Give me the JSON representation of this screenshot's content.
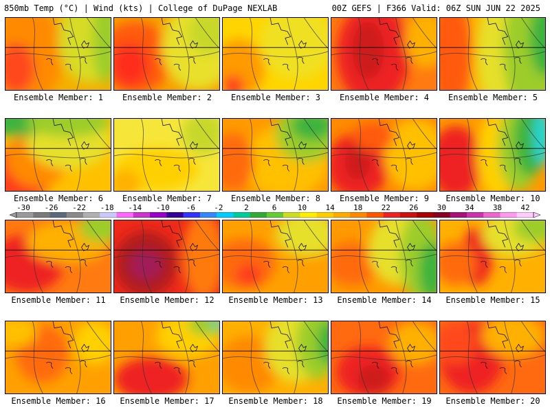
{
  "header": {
    "left": "850mb Temp (°C) | Wind (kts) | College of DuPage NEXLAB",
    "right": "00Z GEFS | F366 Valid: 06Z SUN JUN 22 2025"
  },
  "panel_caption_prefix": "Ensemble Member: ",
  "members": [
    {
      "id": "1",
      "bg": "#f4b000",
      "blobs": [
        [
          "#ff8a00",
          0.2,
          0.5,
          0.35,
          0.7
        ],
        [
          "#ff4a1a",
          0.1,
          0.7,
          0.18,
          0.35
        ],
        [
          "#d7dc25",
          0.8,
          0.3,
          0.3,
          0.6
        ],
        [
          "#9ccd2a",
          0.95,
          0.3,
          0.12,
          0.6
        ]
      ]
    },
    {
      "id": "2",
      "bg": "#f7a000",
      "blobs": [
        [
          "#ff5a10",
          0.2,
          0.55,
          0.35,
          0.5
        ],
        [
          "#ff2e1a",
          0.15,
          0.65,
          0.18,
          0.3
        ],
        [
          "#e8e02a",
          0.8,
          0.4,
          0.35,
          0.6
        ],
        [
          "#c8d82a",
          0.9,
          0.2,
          0.2,
          0.3
        ]
      ]
    },
    {
      "id": "3",
      "bg": "#ffd500",
      "blobs": [
        [
          "#ff9a00",
          0.15,
          0.7,
          0.25,
          0.4
        ],
        [
          "#f0e020",
          0.7,
          0.35,
          0.35,
          0.5
        ],
        [
          "#ff3a1a",
          0.1,
          0.95,
          0.1,
          0.15
        ]
      ]
    },
    {
      "id": "4",
      "bg": "#ff7a10",
      "blobs": [
        [
          "#ee2222",
          0.4,
          0.5,
          0.35,
          0.7
        ],
        [
          "#cc1a1a",
          0.35,
          0.45,
          0.15,
          0.4
        ],
        [
          "#ffb000",
          0.9,
          0.3,
          0.2,
          0.4
        ]
      ]
    },
    {
      "id": "5",
      "bg": "#ffb000",
      "blobs": [
        [
          "#ff5a10",
          0.1,
          0.5,
          0.2,
          0.8
        ],
        [
          "#e6e02a",
          0.55,
          0.5,
          0.2,
          0.8
        ],
        [
          "#9ccd2a",
          0.85,
          0.45,
          0.25,
          0.9
        ],
        [
          "#3cb43c",
          1.0,
          0.3,
          0.15,
          0.5
        ]
      ]
    },
    {
      "id": "6",
      "bg": "#ffc000",
      "blobs": [
        [
          "#ff3a1a",
          0.15,
          0.75,
          0.3,
          0.4
        ],
        [
          "#ff8a00",
          0.3,
          0.55,
          0.3,
          0.4
        ],
        [
          "#e6e02a",
          0.6,
          0.3,
          0.4,
          0.4
        ],
        [
          "#3cb43c",
          0.1,
          0.05,
          0.3,
          0.2
        ],
        [
          "#9ccd2a",
          0.6,
          0.05,
          0.4,
          0.2
        ]
      ]
    },
    {
      "id": "7",
      "bg": "#f7e63a",
      "blobs": [
        [
          "#ffd000",
          0.4,
          0.7,
          0.4,
          0.3
        ],
        [
          "#ffb000",
          0.1,
          0.9,
          0.15,
          0.2
        ],
        [
          "#c8d82a",
          0.85,
          0.2,
          0.2,
          0.3
        ]
      ]
    },
    {
      "id": "8",
      "bg": "#ff9a00",
      "blobs": [
        [
          "#ffc000",
          0.6,
          0.6,
          0.4,
          0.5
        ],
        [
          "#9ccd2a",
          0.8,
          0.2,
          0.3,
          0.4
        ],
        [
          "#3cb43c",
          0.85,
          0.1,
          0.2,
          0.2
        ],
        [
          "#ff6a10",
          0.1,
          0.6,
          0.2,
          0.4
        ]
      ]
    },
    {
      "id": "9",
      "bg": "#ff8a00",
      "blobs": [
        [
          "#ee2222",
          0.25,
          0.65,
          0.3,
          0.45
        ],
        [
          "#cc1a1a",
          0.25,
          0.6,
          0.12,
          0.25
        ],
        [
          "#ffc000",
          0.8,
          0.5,
          0.3,
          0.5
        ],
        [
          "#ff5a10",
          0.4,
          0.25,
          0.2,
          0.2
        ]
      ]
    },
    {
      "id": "10",
      "bg": "#ff9a00",
      "blobs": [
        [
          "#ee2222",
          0.15,
          0.6,
          0.25,
          0.5
        ],
        [
          "#ffd000",
          0.55,
          0.5,
          0.2,
          0.6
        ],
        [
          "#9ccd2a",
          0.75,
          0.4,
          0.2,
          0.6
        ],
        [
          "#3cb43c",
          0.85,
          0.3,
          0.15,
          0.5
        ],
        [
          "#22d6d6",
          0.97,
          0.25,
          0.08,
          0.4
        ]
      ]
    },
    {
      "id": "11",
      "bg": "#ff7a10",
      "blobs": [
        [
          "#ee2222",
          0.2,
          0.6,
          0.35,
          0.4
        ],
        [
          "#ffb000",
          0.6,
          0.3,
          0.4,
          0.3
        ],
        [
          "#9ccd2a",
          0.9,
          0.1,
          0.2,
          0.2
        ]
      ]
    },
    {
      "id": "12",
      "bg": "#ee2a1a",
      "blobs": [
        [
          "#b01a1a",
          0.3,
          0.6,
          0.3,
          0.45
        ],
        [
          "#a01a5a",
          0.3,
          0.62,
          0.15,
          0.2
        ],
        [
          "#ff7a10",
          0.85,
          0.5,
          0.2,
          0.6
        ]
      ]
    },
    {
      "id": "13",
      "bg": "#ffa000",
      "blobs": [
        [
          "#ff6a10",
          0.2,
          0.6,
          0.3,
          0.35
        ],
        [
          "#ff3a1a",
          0.25,
          0.75,
          0.12,
          0.15
        ],
        [
          "#e6e02a",
          0.8,
          0.2,
          0.3,
          0.3
        ]
      ]
    },
    {
      "id": "14",
      "bg": "#ff9a00",
      "blobs": [
        [
          "#ff6a10",
          0.2,
          0.6,
          0.25,
          0.3
        ],
        [
          "#e6e02a",
          0.65,
          0.4,
          0.3,
          0.5
        ],
        [
          "#9ccd2a",
          0.85,
          0.5,
          0.2,
          0.6
        ],
        [
          "#3cb43c",
          0.95,
          0.7,
          0.12,
          0.4
        ]
      ]
    },
    {
      "id": "15",
      "bg": "#ffb000",
      "blobs": [
        [
          "#ee2222",
          0.35,
          0.5,
          0.15,
          0.4
        ],
        [
          "#ff6a10",
          0.15,
          0.6,
          0.2,
          0.3
        ],
        [
          "#e6e02a",
          0.7,
          0.2,
          0.3,
          0.3
        ],
        [
          "#9ccd2a",
          0.9,
          0.1,
          0.2,
          0.2
        ]
      ]
    },
    {
      "id": "16",
      "bg": "#ffa000",
      "blobs": [
        [
          "#ff6a10",
          0.35,
          0.45,
          0.25,
          0.4
        ],
        [
          "#ffc000",
          0.1,
          0.15,
          0.2,
          0.2
        ],
        [
          "#ffd000",
          0.85,
          0.3,
          0.2,
          0.3
        ]
      ]
    },
    {
      "id": "17",
      "bg": "#ffa000",
      "blobs": [
        [
          "#ee2222",
          0.35,
          0.8,
          0.35,
          0.3
        ],
        [
          "#ffd000",
          0.7,
          0.2,
          0.3,
          0.3
        ],
        [
          "#9ccd2a",
          0.9,
          0.05,
          0.2,
          0.15
        ],
        [
          "#22d6d6",
          0.97,
          0.02,
          0.05,
          0.05
        ]
      ]
    },
    {
      "id": "18",
      "bg": "#ffb000",
      "blobs": [
        [
          "#ff8a00",
          0.25,
          0.6,
          0.3,
          0.4
        ],
        [
          "#e6e02a",
          0.7,
          0.35,
          0.3,
          0.5
        ],
        [
          "#9ccd2a",
          0.9,
          0.3,
          0.2,
          0.5
        ],
        [
          "#3cb43c",
          1.0,
          0.3,
          0.1,
          0.3
        ]
      ]
    },
    {
      "id": "19",
      "bg": "#ff6a10",
      "blobs": [
        [
          "#ee2222",
          0.35,
          0.7,
          0.3,
          0.35
        ],
        [
          "#cc1a1a",
          0.4,
          0.8,
          0.15,
          0.2
        ],
        [
          "#ffb000",
          0.8,
          0.3,
          0.25,
          0.3
        ]
      ]
    },
    {
      "id": "20",
      "bg": "#ff6a10",
      "blobs": [
        [
          "#ee2222",
          0.3,
          0.5,
          0.3,
          0.5
        ],
        [
          "#ffb000",
          0.7,
          0.2,
          0.3,
          0.3
        ],
        [
          "#ff4a1a",
          0.15,
          0.3,
          0.2,
          0.3
        ]
      ]
    }
  ],
  "colorbar": {
    "labels": [
      "-30",
      "-26",
      "-22",
      "-18",
      "-14",
      "-10",
      "-6",
      "-2",
      "2",
      "6",
      "10",
      "14",
      "18",
      "22",
      "26",
      "30",
      "34",
      "38",
      "42"
    ],
    "colors": [
      "#9a9a9a",
      "#7a7a7a",
      "#5a6a7a",
      "#8a8a8a",
      "#b0b0b0",
      "#c8c8ff",
      "#ff66ff",
      "#cc33cc",
      "#9900cc",
      "#330099",
      "#3333ff",
      "#3388ff",
      "#00ccff",
      "#00cc99",
      "#33aa33",
      "#66cc33",
      "#ccdd22",
      "#ffee00",
      "#ffcc00",
      "#ffaa00",
      "#ff8800",
      "#ff5500",
      "#ee2222",
      "#cc1111",
      "#aa0000",
      "#880022",
      "#aa1177",
      "#cc33aa",
      "#ee66cc",
      "#ff99ee",
      "#ffccff"
    ]
  }
}
